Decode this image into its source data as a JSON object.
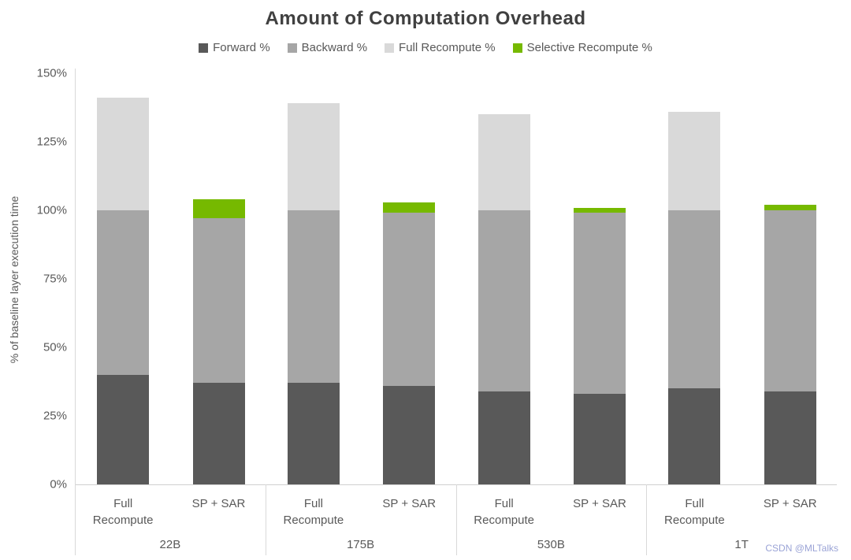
{
  "title": "Amount of Computation Overhead",
  "watermark": "CSDN @MLTalks",
  "chart_data": {
    "type": "bar",
    "stacked": true,
    "title": "Amount of Computation Overhead",
    "ylabel": "% of baseline layer execution time",
    "ylim": [
      0,
      150
    ],
    "yticks": [
      "0%",
      "25%",
      "50%",
      "75%",
      "100%",
      "125%",
      "150%"
    ],
    "grid": false,
    "legend_position": "top",
    "series": [
      {
        "name": "Forward %",
        "key": "forward",
        "color": "#595959"
      },
      {
        "name": "Backward %",
        "key": "backward",
        "color": "#a6a6a6"
      },
      {
        "name": "Full Recompute %",
        "key": "full_recompute",
        "color": "#d9d9d9"
      },
      {
        "name": "Selective Recompute %",
        "key": "selective_recompute",
        "color": "#76b900"
      }
    ],
    "groups": [
      "22B",
      "175B",
      "530B",
      "1T"
    ],
    "bar_labels": [
      "Full Recompute",
      "SP + SAR"
    ],
    "bars": [
      {
        "group": "22B",
        "label": "Full Recompute",
        "segments": {
          "forward": 40,
          "backward": 60,
          "full_recompute": 41,
          "selective_recompute": 0
        }
      },
      {
        "group": "22B",
        "label": "SP + SAR",
        "segments": {
          "forward": 37,
          "backward": 60,
          "full_recompute": 0,
          "selective_recompute": 7
        }
      },
      {
        "group": "175B",
        "label": "Full Recompute",
        "segments": {
          "forward": 37,
          "backward": 63,
          "full_recompute": 39,
          "selective_recompute": 0
        }
      },
      {
        "group": "175B",
        "label": "SP + SAR",
        "segments": {
          "forward": 36,
          "backward": 63,
          "full_recompute": 0,
          "selective_recompute": 4
        }
      },
      {
        "group": "530B",
        "label": "Full Recompute",
        "segments": {
          "forward": 34,
          "backward": 66,
          "full_recompute": 35,
          "selective_recompute": 0
        }
      },
      {
        "group": "530B",
        "label": "SP + SAR",
        "segments": {
          "forward": 33,
          "backward": 66,
          "full_recompute": 0,
          "selective_recompute": 2
        }
      },
      {
        "group": "1T",
        "label": "Full Recompute",
        "segments": {
          "forward": 35,
          "backward": 65,
          "full_recompute": 36,
          "selective_recompute": 0
        }
      },
      {
        "group": "1T",
        "label": "SP + SAR",
        "segments": {
          "forward": 34,
          "backward": 66,
          "full_recompute": 0,
          "selective_recompute": 2
        }
      }
    ]
  }
}
